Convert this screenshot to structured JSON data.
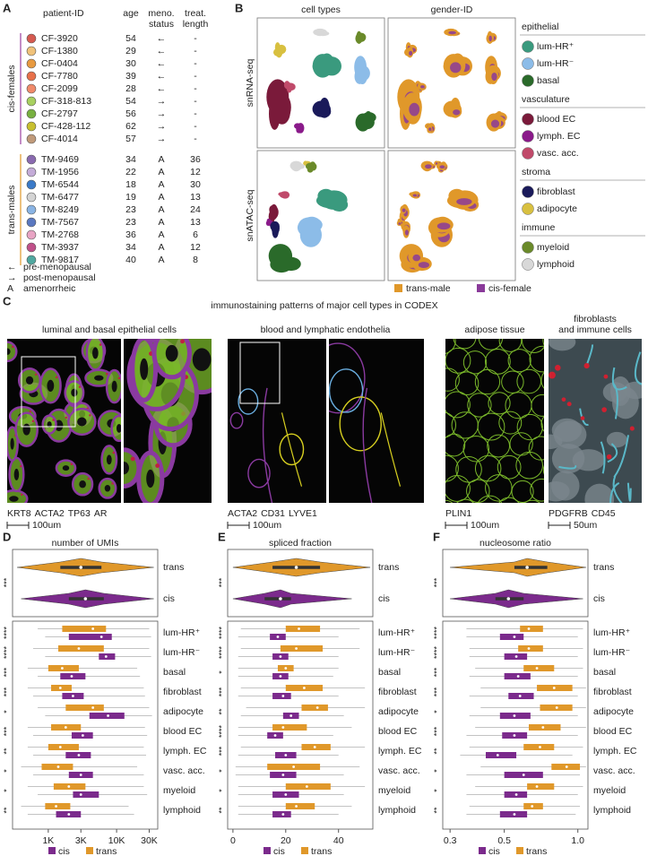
{
  "panels": {
    "A": {
      "label": "A",
      "headers": [
        [
          "patient-ID"
        ],
        [
          "age"
        ],
        [
          "meno.",
          "status"
        ],
        [
          "treat.",
          "length"
        ]
      ],
      "groups": [
        {
          "label": "cis-females",
          "color": "#9b3fa0",
          "rows": [
            {
              "id": "CF-3920",
              "age": 54,
              "meno": "←",
              "treat": "-",
              "color": "#d65a50"
            },
            {
              "id": "CF-1380",
              "age": 29,
              "meno": "←",
              "treat": "-",
              "color": "#f0c27a"
            },
            {
              "id": "CF-0404",
              "age": 30,
              "meno": "←",
              "treat": "-",
              "color": "#e89a40"
            },
            {
              "id": "CF-7780",
              "age": 39,
              "meno": "←",
              "treat": "-",
              "color": "#e8704a"
            },
            {
              "id": "CF-2099",
              "age": 28,
              "meno": "←",
              "treat": "-",
              "color": "#f08a6a"
            },
            {
              "id": "CF-318-813",
              "age": 54,
              "meno": "→",
              "treat": "-",
              "color": "#a8d060"
            },
            {
              "id": "CF-2797",
              "age": 56,
              "meno": "→",
              "treat": "-",
              "color": "#78b040"
            },
            {
              "id": "CF-428-112",
              "age": 62,
              "meno": "→",
              "treat": "-",
              "color": "#c8c030"
            },
            {
              "id": "CF-4014",
              "age": 57,
              "meno": "→",
              "treat": "-",
              "color": "#c09a7a"
            }
          ]
        },
        {
          "label": "trans-males",
          "color": "#e0982a",
          "rows": [
            {
              "id": "TM-9469",
              "age": 34,
              "meno": "A",
              "treat": 36,
              "color": "#8a6ab0"
            },
            {
              "id": "TM-1956",
              "age": 22,
              "meno": "A",
              "treat": 12,
              "color": "#c4acd8"
            },
            {
              "id": "TM-6544",
              "age": 18,
              "meno": "A",
              "treat": 30,
              "color": "#3a7ac8"
            },
            {
              "id": "TM-6477",
              "age": 19,
              "meno": "A",
              "treat": 13,
              "color": "#d4d4d4"
            },
            {
              "id": "TM-8249",
              "age": 23,
              "meno": "A",
              "treat": 24,
              "color": "#8ab4e4"
            },
            {
              "id": "TM-7567",
              "age": 23,
              "meno": "A",
              "treat": 13,
              "color": "#5a78c0"
            },
            {
              "id": "TM-2768",
              "age": 36,
              "meno": "A",
              "treat": 6,
              "color": "#e8a4c4"
            },
            {
              "id": "TM-3937",
              "age": 34,
              "meno": "A",
              "treat": 12,
              "color": "#c0508a"
            },
            {
              "id": "TM-9817",
              "age": 40,
              "meno": "A",
              "treat": 8,
              "color": "#50a8a0"
            }
          ]
        }
      ],
      "legend": [
        {
          "symbol": "←",
          "text": "pre-menopausal"
        },
        {
          "symbol": "→",
          "text": "post-menopausal"
        },
        {
          "symbol": "A",
          "text": "amenorrheic"
        }
      ]
    },
    "B": {
      "label": "B",
      "columns": [
        "cell types",
        "gender-ID"
      ],
      "rows": [
        "snRNA-seq",
        "snATAC-seq"
      ],
      "legend_groups": [
        {
          "name": "epithelial",
          "items": [
            {
              "name": "lum-HR⁺",
              "color": "#3a9a7e"
            },
            {
              "name": "lum-HR⁻",
              "color": "#8cbce8"
            },
            {
              "name": "basal",
              "color": "#2a6a2a"
            }
          ]
        },
        {
          "name": "vasculature",
          "items": [
            {
              "name": "blood EC",
              "color": "#7a1a3a"
            },
            {
              "name": "lymph. EC",
              "color": "#8a1a8a"
            },
            {
              "name": "vasc. acc.",
              "color": "#c04a6a"
            }
          ]
        },
        {
          "name": "stroma",
          "items": [
            {
              "name": "fibroblast",
              "color": "#1a1a5a"
            },
            {
              "name": "adipocyte",
              "color": "#d8c040"
            }
          ]
        },
        {
          "name": "immune",
          "items": [
            {
              "name": "myeloid",
              "color": "#6a8a2a"
            },
            {
              "name": "lymphoid",
              "color": "#d8d8d8"
            }
          ]
        }
      ],
      "gender_legend": [
        {
          "name": "trans-male",
          "color": "#e0982a"
        },
        {
          "name": "cis-female",
          "color": "#8a3a9a"
        }
      ]
    },
    "C": {
      "label": "C",
      "title": "immunostaining patterns of major cell types in CODEX",
      "panels": [
        {
          "title": [
            "luminal and basal epithelial cells"
          ],
          "scale": "100um",
          "stains": [
            {
              "text": "KRT8",
              "color": "#7ab82a"
            },
            {
              "text": "ACTA2",
              "color": "#8a3aa0"
            },
            {
              "text": "TP63",
              "color": "#6aaee0"
            },
            {
              "text": "AR",
              "color": "#c02040"
            }
          ]
        },
        {
          "title": [
            "blood and lymphatic endothelia"
          ],
          "scale": "100um",
          "stains": [
            {
              "text": "ACTA2",
              "color": "#8a3aa0"
            },
            {
              "text": "CD31",
              "color": "#6aaee0"
            },
            {
              "text": "LYVE1",
              "color": "#d8d020"
            }
          ]
        },
        {
          "title": [
            "adipose tissue"
          ],
          "scale": "100um",
          "stains": [
            {
              "text": "PLIN1",
              "color": "#7ab82a"
            }
          ]
        },
        {
          "title": [
            "fibroblasts",
            "and immune cells"
          ],
          "scale": "50um",
          "stains": [
            {
              "text": "PDGFRB",
              "color": "#5ab8c8"
            },
            {
              "text": "CD45",
              "color": "#d02030"
            }
          ]
        }
      ]
    }
  },
  "chart_data": [
    {
      "type": "box",
      "label": "D",
      "title": "number of UMIs",
      "xscale": "log",
      "xlim": [
        300,
        40000
      ],
      "xticks": [
        {
          "value": 1000,
          "label": "1K"
        },
        {
          "value": 3000,
          "label": "3K"
        },
        {
          "value": 10000,
          "label": "10K"
        },
        {
          "value": 30000,
          "label": "30K"
        }
      ],
      "categories": [
        "lum-HR⁺",
        "lum-HR⁻",
        "basal",
        "fibroblast",
        "adipocyte",
        "blood EC",
        "lymph. EC",
        "vasc. acc.",
        "myeloid",
        "lymphoid"
      ],
      "stars": [
        "****",
        "****",
        "***",
        "***",
        "*",
        "***",
        "**",
        "*",
        "*",
        "**"
      ],
      "series": [
        {
          "name": "cis",
          "color": "#7b2a8c",
          "values": [
            [
              900,
              2000,
              6000,
              8500,
              32000
            ],
            [
              900,
              5500,
              7000,
              9500,
              32000
            ],
            [
              700,
              1500,
              2200,
              3500,
              22000
            ],
            [
              600,
              1600,
              2300,
              3300,
              26000
            ],
            [
              900,
              4000,
              7500,
              13000,
              33000
            ],
            [
              600,
              2200,
              3200,
              4500,
              28000
            ],
            [
              600,
              1800,
              2800,
              4200,
              27000
            ],
            [
              600,
              2000,
              3000,
              4500,
              25000
            ],
            [
              700,
              2300,
              3000,
              5500,
              28000
            ],
            [
              500,
              1300,
              2000,
              3000,
              18000
            ]
          ]
        },
        {
          "name": "trans",
          "color": "#e0982a",
          "values": [
            [
              700,
              1600,
              4500,
              7000,
              30000
            ],
            [
              600,
              1400,
              2800,
              6500,
              30000
            ],
            [
              500,
              1000,
              1600,
              2800,
              20000
            ],
            [
              500,
              1100,
              1500,
              2200,
              25000
            ],
            [
              700,
              1800,
              4500,
              6500,
              30000
            ],
            [
              500,
              1100,
              1800,
              3000,
              26000
            ],
            [
              500,
              1000,
              1500,
              2800,
              25000
            ],
            [
              400,
              800,
              1400,
              2300,
              20000
            ],
            [
              500,
              1200,
              2000,
              3500,
              25000
            ],
            [
              400,
              900,
              1300,
              2100,
              15000
            ]
          ]
        }
      ],
      "violin_categories": [
        "trans",
        "cis"
      ],
      "violin_stars": "***",
      "violin_values": [
        [
          350,
          1500,
          3000,
          6000,
          35000
        ],
        [
          400,
          2000,
          3500,
          6500,
          35000
        ]
      ]
    },
    {
      "type": "box",
      "label": "E",
      "title": "spliced fraction",
      "xscale": "linear",
      "xlim": [
        -2,
        53
      ],
      "xticks": [
        0,
        20,
        40
      ],
      "categories": [
        "lum-HR⁺",
        "lum-HR⁻",
        "basal",
        "fibroblast",
        "adipocyte",
        "blood EC",
        "lymph. EC",
        "vasc. acc.",
        "myeloid",
        "lymphoid"
      ],
      "stars": [
        "****",
        "****",
        "*",
        "***",
        "**",
        "****",
        "***",
        "*",
        "*",
        "**"
      ],
      "series": [
        {
          "name": "cis",
          "color": "#7b2a8c",
          "values": [
            [
              2,
              14,
              17,
              20,
              40
            ],
            [
              2,
              15,
              18,
              21,
              40
            ],
            [
              2,
              15,
              18,
              21,
              38
            ],
            [
              2,
              15,
              19,
              22,
              40
            ],
            [
              3,
              19,
              22,
              25,
              42
            ],
            [
              2,
              13,
              16,
              19,
              38
            ],
            [
              2,
              16,
              20,
              24,
              40
            ],
            [
              1,
              14,
              19,
              24,
              42
            ],
            [
              2,
              15,
              20,
              25,
              42
            ],
            [
              2,
              15,
              19,
              22,
              40
            ]
          ]
        },
        {
          "name": "trans",
          "color": "#e0982a",
          "values": [
            [
              3,
              20,
              25,
              33,
              48
            ],
            [
              3,
              18,
              24,
              34,
              48
            ],
            [
              2,
              17,
              20,
              23,
              40
            ],
            [
              3,
              20,
              27,
              34,
              50
            ],
            [
              5,
              26,
              32,
              36,
              50
            ],
            [
              2,
              15,
              19,
              28,
              45
            ],
            [
              3,
              26,
              31,
              37,
              50
            ],
            [
              1,
              13,
              23,
              33,
              48
            ],
            [
              2,
              20,
              28,
              37,
              50
            ],
            [
              2,
              20,
              24,
              31,
              45
            ]
          ]
        }
      ],
      "violin_categories": [
        "trans",
        "cis"
      ],
      "violin_stars": "***",
      "violin_values": [
        [
          0,
          15,
          24,
          33,
          52
        ],
        [
          0,
          12,
          18,
          22,
          45
        ]
      ]
    },
    {
      "type": "box",
      "label": "F",
      "title": "nucleosome ratio",
      "xscale": "log",
      "xlim": [
        0.28,
        1.1
      ],
      "xticks": [
        0.3,
        0.5,
        {
          "value": 1,
          "label": "1.0"
        }
      ],
      "categories": [
        "lum-HR⁺",
        "lum-HR⁻",
        "basal",
        "fibroblast",
        "adipocyte",
        "blood EC",
        "lymph. EC",
        "vasc. acc.",
        "myeloid",
        "lymphoid"
      ],
      "stars": [
        "****",
        "****",
        "***",
        "***",
        "*",
        "***",
        "**",
        "*",
        "*",
        "**"
      ],
      "series": [
        {
          "name": "cis",
          "color": "#7b2a8c",
          "values": [
            [
              0.35,
              0.48,
              0.55,
              0.6,
              1.0
            ],
            [
              0.36,
              0.5,
              0.56,
              0.62,
              1.0
            ],
            [
              0.36,
              0.5,
              0.57,
              0.64,
              1.0
            ],
            [
              0.36,
              0.52,
              0.58,
              0.66,
              1.0
            ],
            [
              0.36,
              0.48,
              0.55,
              0.64,
              1.0
            ],
            [
              0.35,
              0.49,
              0.55,
              0.62,
              1.0
            ],
            [
              0.33,
              0.42,
              0.47,
              0.56,
              0.95
            ],
            [
              0.35,
              0.5,
              0.6,
              0.72,
              1.02
            ],
            [
              0.35,
              0.5,
              0.56,
              0.62,
              1.0
            ],
            [
              0.35,
              0.48,
              0.55,
              0.62,
              0.98
            ]
          ]
        },
        {
          "name": "trans",
          "color": "#e0982a",
          "values": [
            [
              0.35,
              0.58,
              0.63,
              0.72,
              1.05
            ],
            [
              0.36,
              0.57,
              0.63,
              0.72,
              1.05
            ],
            [
              0.38,
              0.6,
              0.68,
              0.8,
              1.05
            ],
            [
              0.4,
              0.68,
              0.8,
              0.95,
              1.08
            ],
            [
              0.4,
              0.7,
              0.82,
              0.95,
              1.08
            ],
            [
              0.38,
              0.63,
              0.72,
              0.85,
              1.08
            ],
            [
              0.36,
              0.6,
              0.7,
              0.8,
              1.05
            ],
            [
              0.4,
              0.78,
              0.9,
              1.02,
              1.08
            ],
            [
              0.38,
              0.62,
              0.68,
              0.8,
              1.05
            ],
            [
              0.36,
              0.6,
              0.65,
              0.72,
              1.02
            ]
          ]
        }
      ],
      "violin_categories": [
        "trans",
        "cis"
      ],
      "violin_stars": "***",
      "violin_values": [
        [
          0.3,
          0.55,
          0.62,
          0.75,
          1.08
        ],
        [
          0.3,
          0.46,
          0.52,
          0.6,
          1.05
        ]
      ]
    }
  ]
}
